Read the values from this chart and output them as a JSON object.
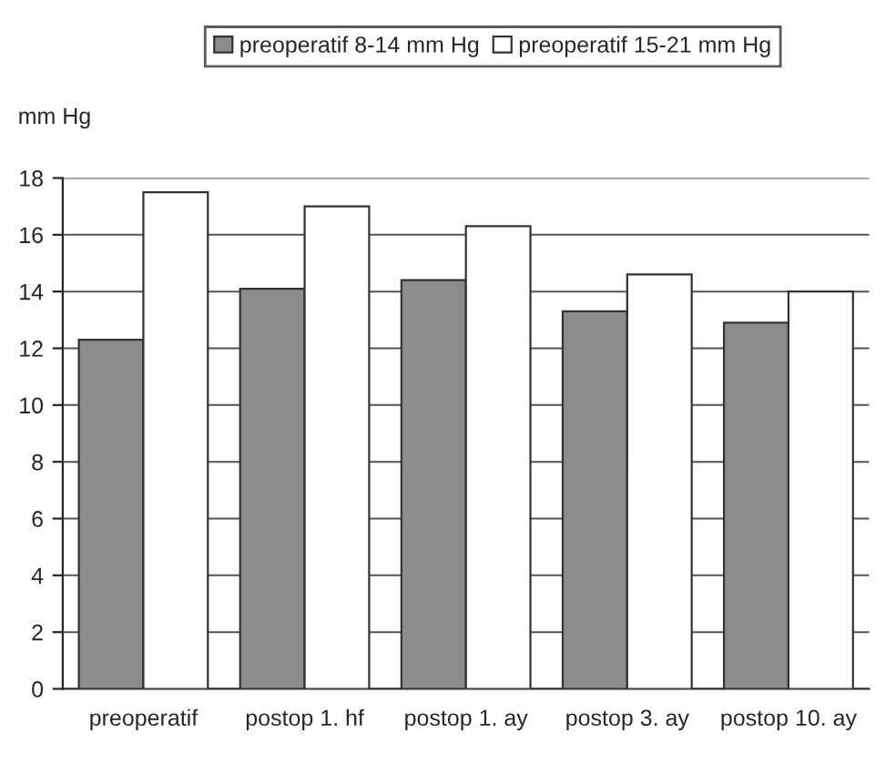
{
  "chart_data": {
    "type": "bar",
    "ylabel": "mm Hg",
    "categories": [
      "preoperatif",
      "postop 1. hf",
      "postop 1. ay",
      "postop 3. ay",
      "postop 10. ay"
    ],
    "series": [
      {
        "name": "preoperatif 8-14 mm Hg",
        "color": "#8c8c8c",
        "values": [
          12.3,
          14.1,
          14.4,
          13.3,
          12.9
        ]
      },
      {
        "name": "preoperatif 15-21 mm Hg",
        "color": "#ffffff",
        "values": [
          17.5,
          17.0,
          16.3,
          14.6,
          14.0
        ]
      }
    ],
    "ylim": [
      0,
      18
    ],
    "yticks": [
      0,
      2,
      4,
      6,
      8,
      10,
      12,
      14,
      16,
      18
    ],
    "grid": "y",
    "legend": "top"
  }
}
